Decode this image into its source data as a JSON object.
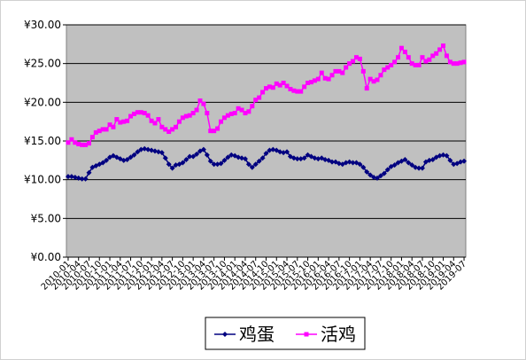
{
  "chart_data": {
    "type": "line",
    "categories": [
      "2010-01",
      null,
      null,
      "2010-04",
      null,
      null,
      "2010-07",
      null,
      null,
      "2010-10",
      null,
      null,
      "2011-01",
      null,
      null,
      "2011-04",
      null,
      null,
      "2011-07",
      null,
      null,
      "2011-10",
      null,
      null,
      "2012-01",
      null,
      null,
      "2012-04",
      null,
      null,
      "2012-07",
      null,
      null,
      "2012-10",
      null,
      null,
      "2013-01",
      null,
      null,
      "2013-04",
      null,
      null,
      "2013-07",
      null,
      null,
      "2013-10",
      null,
      null,
      "2014-01",
      null,
      null,
      "2014-04",
      null,
      null,
      "2014-07",
      null,
      null,
      "2014-10",
      null,
      null,
      "2015-01",
      null,
      null,
      "2015-04",
      null,
      null,
      "2015-07",
      null,
      null,
      "2015-10",
      null,
      null,
      "2016-01",
      null,
      null,
      "2016-04",
      null,
      null,
      "2016-07",
      null,
      null,
      "2016-10",
      null,
      null,
      "2017-01",
      null,
      null,
      "2017-04",
      null,
      null,
      "2017-07",
      null,
      null,
      "2017-10",
      null,
      null,
      "2018-01",
      null,
      null,
      "2018-04",
      null,
      null,
      "2018-07",
      null,
      null,
      "2018-10",
      null,
      null,
      "2019-01",
      null,
      null,
      "2019-04",
      null,
      null,
      "2019-07"
    ],
    "series": [
      {
        "name": "鸡蛋",
        "color": "#000080",
        "marker": "diamond",
        "values": [
          10.4,
          10.4,
          10.3,
          10.2,
          10.1,
          10.1,
          10.9,
          11.6,
          11.8,
          12.0,
          12.2,
          12.5,
          12.9,
          13.1,
          12.9,
          12.7,
          12.5,
          12.6,
          12.9,
          13.2,
          13.6,
          13.9,
          14.0,
          13.9,
          13.8,
          13.7,
          13.6,
          13.5,
          12.8,
          12.0,
          11.5,
          11.9,
          12.0,
          12.2,
          12.6,
          13.0,
          13.0,
          13.3,
          13.7,
          13.9,
          13.2,
          12.4,
          12.0,
          12.0,
          12.1,
          12.5,
          12.9,
          13.2,
          13.1,
          12.9,
          12.8,
          12.7,
          12.0,
          11.6,
          12.0,
          12.4,
          12.8,
          13.4,
          13.8,
          13.9,
          13.8,
          13.6,
          13.5,
          13.6,
          13.0,
          12.8,
          12.7,
          12.7,
          12.8,
          13.2,
          13.0,
          12.8,
          12.7,
          12.8,
          12.6,
          12.5,
          12.3,
          12.3,
          12.1,
          12.0,
          12.2,
          12.3,
          12.2,
          12.2,
          12.0,
          11.6,
          11.0,
          10.6,
          10.3,
          10.2,
          10.5,
          10.8,
          11.3,
          11.7,
          11.9,
          12.2,
          12.4,
          12.6,
          12.2,
          11.9,
          11.6,
          11.5,
          11.5,
          12.3,
          12.5,
          12.6,
          12.9,
          13.1,
          13.2,
          13.1,
          12.5,
          12.0,
          12.1,
          12.3,
          12.4
        ]
      },
      {
        "name": "活鸡",
        "color": "#FF00FF",
        "marker": "square",
        "values": [
          14.8,
          15.2,
          14.8,
          14.6,
          14.5,
          14.5,
          14.7,
          15.5,
          16.1,
          16.3,
          16.5,
          16.5,
          17.1,
          16.8,
          17.8,
          17.4,
          17.5,
          17.6,
          18.2,
          18.5,
          18.7,
          18.7,
          18.6,
          18.3,
          17.6,
          17.3,
          17.8,
          16.8,
          16.5,
          16.2,
          16.5,
          16.8,
          17.5,
          18.0,
          18.2,
          18.3,
          18.6,
          19.0,
          20.2,
          19.8,
          18.6,
          16.3,
          16.3,
          16.6,
          17.5,
          18.0,
          18.3,
          18.5,
          18.6,
          19.2,
          19.0,
          18.6,
          18.8,
          19.5,
          20.3,
          20.6,
          21.3,
          21.8,
          22.0,
          21.9,
          22.4,
          22.2,
          22.5,
          22.1,
          21.7,
          21.5,
          21.4,
          21.4,
          22.0,
          22.5,
          22.6,
          22.8,
          23.0,
          23.8,
          23.1,
          23.0,
          23.5,
          24.0,
          24.0,
          23.8,
          24.5,
          25.0,
          25.3,
          25.8,
          25.6,
          24.0,
          21.8,
          23.0,
          22.7,
          22.9,
          23.5,
          24.2,
          24.5,
          24.8,
          25.2,
          25.8,
          27.0,
          26.5,
          25.8,
          25.0,
          24.8,
          24.8,
          25.8,
          25.3,
          25.5,
          26.0,
          26.3,
          26.8,
          27.3,
          26.0,
          25.2,
          25.0,
          25.0,
          25.1,
          25.2
        ]
      }
    ],
    "ylim": [
      0,
      30
    ],
    "yticks": [
      {
        "value": 0,
        "label": "¥0.00"
      },
      {
        "value": 5,
        "label": "¥5.00"
      },
      {
        "value": 10,
        "label": "¥10.00"
      },
      {
        "value": 15,
        "label": "¥15.00"
      },
      {
        "value": 20,
        "label": "¥20.00"
      },
      {
        "value": 25,
        "label": "¥25.00"
      },
      {
        "value": 30,
        "label": "¥30.00"
      }
    ],
    "grid": true,
    "legend": "bottom",
    "plot_background": "#C0C0C0"
  }
}
